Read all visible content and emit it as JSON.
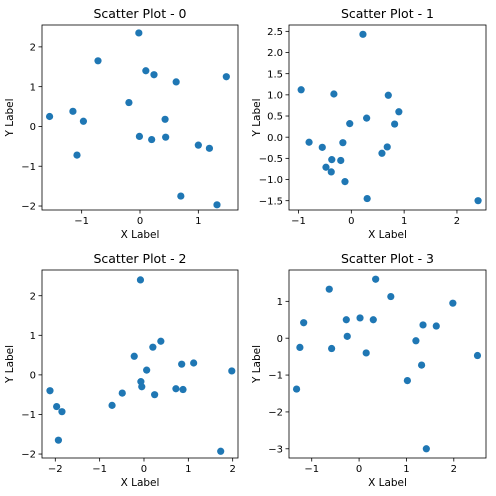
{
  "chart_data": [
    {
      "type": "scatter",
      "title": "Scatter Plot - 0",
      "xlabel": "X Label",
      "ylabel": "Y Label",
      "color": "#1f77b4",
      "xlim": [
        -1.68,
        1.68
      ],
      "ylim": [
        -2.1,
        2.55
      ],
      "xticks": [
        -1,
        0,
        1
      ],
      "yticks": [
        -2,
        -1,
        0,
        1,
        2
      ],
      "x": [
        -1.55,
        -1.15,
        -1.08,
        -0.97,
        -0.72,
        -0.19,
        -0.02,
        -0.01,
        0.1,
        0.2,
        0.24,
        0.43,
        0.44,
        0.62,
        0.7,
        1.0,
        1.19,
        1.32,
        1.48
      ],
      "y": [
        0.25,
        0.38,
        -0.72,
        0.13,
        1.65,
        0.6,
        2.35,
        -0.25,
        1.4,
        -0.33,
        1.3,
        0.18,
        -0.27,
        1.12,
        -1.75,
        -0.47,
        -0.55,
        -1.97,
        1.25
      ]
    },
    {
      "type": "scatter",
      "title": "Scatter Plot - 1",
      "xlabel": "X Label",
      "ylabel": "Y Label",
      "color": "#1f77b4",
      "xlim": [
        -1.18,
        2.55
      ],
      "ylim": [
        -1.72,
        2.65
      ],
      "xticks": [
        -1,
        0,
        1,
        2
      ],
      "yticks": [
        -1.5,
        -1.0,
        -0.5,
        0.0,
        0.5,
        1.0,
        1.5,
        2.0,
        2.5
      ],
      "ytick_labels": [
        "−1.5",
        "−1.0",
        "−0.5",
        "0.0",
        "0.5",
        "1.0",
        "1.5",
        "2.0",
        "2.5"
      ],
      "x": [
        -0.95,
        -0.8,
        -0.55,
        -0.48,
        -0.38,
        -0.37,
        -0.33,
        -0.2,
        -0.16,
        -0.12,
        -0.03,
        0.22,
        0.29,
        0.3,
        0.58,
        0.68,
        0.7,
        0.82,
        0.9,
        2.4
      ],
      "y": [
        1.12,
        -0.12,
        -0.24,
        -0.71,
        -0.82,
        -0.53,
        1.02,
        -0.55,
        -0.13,
        -1.05,
        0.32,
        2.43,
        0.45,
        -1.45,
        -0.38,
        -0.23,
        0.99,
        0.31,
        0.6,
        -1.5
      ]
    },
    {
      "type": "scatter",
      "title": "Scatter Plot - 2",
      "xlabel": "X Label",
      "ylabel": "Y Label",
      "color": "#1f77b4",
      "xlim": [
        -2.3,
        2.12
      ],
      "ylim": [
        -2.1,
        2.65
      ],
      "xticks": [
        -2,
        -1,
        0,
        1,
        2
      ],
      "yticks": [
        -2,
        -1,
        0,
        1,
        2
      ],
      "x": [
        -2.12,
        -1.97,
        -1.93,
        -1.85,
        -0.72,
        -0.49,
        -0.22,
        -0.08,
        -0.07,
        -0.05,
        0.06,
        0.2,
        0.24,
        0.38,
        0.72,
        0.85,
        0.88,
        1.12,
        1.73,
        1.98
      ],
      "y": [
        -0.4,
        -0.8,
        -1.65,
        -0.93,
        -0.77,
        -0.46,
        0.47,
        2.4,
        -0.17,
        -0.3,
        0.12,
        0.7,
        -0.5,
        0.85,
        -0.35,
        0.27,
        -0.37,
        0.3,
        -1.93,
        0.1
      ]
    },
    {
      "type": "scatter",
      "title": "Scatter Plot - 3",
      "xlabel": "X Label",
      "ylabel": "Y Label",
      "color": "#1f77b4",
      "xlim": [
        -1.48,
        2.68
      ],
      "ylim": [
        -3.25,
        1.85
      ],
      "xticks": [
        -1,
        0,
        1,
        2
      ],
      "yticks": [
        -3,
        -2,
        -1,
        0,
        1
      ],
      "x": [
        -1.32,
        -1.25,
        -1.17,
        -0.63,
        -0.58,
        -0.27,
        -0.25,
        0.02,
        0.15,
        0.3,
        0.35,
        0.67,
        1.02,
        1.2,
        1.32,
        1.35,
        1.42,
        1.63,
        1.98,
        2.5
      ],
      "y": [
        -1.38,
        -0.25,
        0.42,
        1.33,
        -0.28,
        0.5,
        0.05,
        0.55,
        -0.4,
        0.5,
        1.6,
        1.13,
        -1.15,
        -0.07,
        -0.73,
        0.36,
        -3.0,
        0.33,
        0.95,
        -0.47
      ]
    }
  ]
}
